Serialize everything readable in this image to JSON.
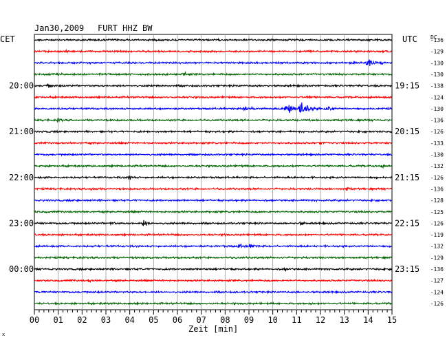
{
  "header": {
    "date": "Jan30,2009",
    "station": "FURT HHZ BW",
    "left_tz": "CET",
    "right_tz": "UTC",
    "dc_label": "DC"
  },
  "footer": {
    "xlabel": "Zeit [min]",
    "corner_mark": "x"
  },
  "chart_data": {
    "type": "line",
    "title": "Jan30,2009   FURT HHZ BW",
    "xlabel": "Zeit [min]",
    "xlim": [
      0,
      15
    ],
    "x_ticks": [
      "00",
      "01",
      "02",
      "03",
      "04",
      "05",
      "06",
      "07",
      "08",
      "09",
      "10",
      "11",
      "12",
      "13",
      "14",
      "15"
    ],
    "grid": true,
    "trace_colors": [
      "#000000",
      "#ff0000",
      "#0000ff",
      "#006400"
    ],
    "left_time_labels": [
      {
        "row": 4,
        "label": "20:00"
      },
      {
        "row": 8,
        "label": "21:00"
      },
      {
        "row": 12,
        "label": "22:00"
      },
      {
        "row": 16,
        "label": "23:00"
      },
      {
        "row": 20,
        "label": "00:00"
      }
    ],
    "right_time_labels": [
      {
        "row": 4,
        "label": "19:15"
      },
      {
        "row": 8,
        "label": "20:15"
      },
      {
        "row": 12,
        "label": "21:15"
      },
      {
        "row": 16,
        "label": "22:15"
      },
      {
        "row": 20,
        "label": "23:15"
      }
    ],
    "dc_offsets": [
      -136,
      -129,
      -130,
      -130,
      -138,
      -124,
      -130,
      -136,
      -126,
      -133,
      -130,
      -132,
      -126,
      -136,
      -128,
      -125,
      -126,
      -119,
      -132,
      -129,
      -136,
      -127,
      -124,
      -126
    ],
    "traces": [
      {
        "events": []
      },
      {
        "events": [
          {
            "t": 1.3,
            "amp": 0.35,
            "dur": 0.5
          },
          {
            "t": 6.5,
            "amp": 0.25,
            "dur": 0.4
          }
        ]
      },
      {
        "events": [
          {
            "t": 13.3,
            "amp": 0.4,
            "dur": 0.5
          },
          {
            "t": 14.0,
            "amp": 1.0,
            "dur": 0.5
          },
          {
            "t": 14.6,
            "amp": 0.4,
            "dur": 0.4
          }
        ]
      },
      {
        "events": [
          {
            "t": 1.0,
            "amp": 0.3,
            "dur": 0.5
          },
          {
            "t": 6.3,
            "amp": 0.5,
            "dur": 0.4
          }
        ]
      },
      {
        "events": [
          {
            "t": 0.6,
            "amp": 0.5,
            "dur": 0.3
          }
        ]
      },
      {
        "events": [
          {
            "t": 11.5,
            "amp": 0.35,
            "dur": 0.5
          }
        ]
      },
      {
        "events": [
          {
            "t": 8.8,
            "amp": 0.5,
            "dur": 1.2
          },
          {
            "t": 10.6,
            "amp": 1.3,
            "dur": 0.7
          },
          {
            "t": 11.2,
            "amp": 1.5,
            "dur": 0.8
          },
          {
            "t": 12.3,
            "amp": 0.6,
            "dur": 0.8
          }
        ]
      },
      {
        "events": [
          {
            "t": 1.0,
            "amp": 0.4,
            "dur": 0.5
          },
          {
            "t": 11.5,
            "amp": 0.25,
            "dur": 0.6
          }
        ]
      },
      {
        "events": []
      },
      {
        "events": [
          {
            "t": 12.0,
            "amp": 0.5,
            "dur": 0.4
          }
        ]
      },
      {
        "events": []
      },
      {
        "events": [
          {
            "t": 14.6,
            "amp": 0.4,
            "dur": 0.3
          }
        ]
      },
      {
        "events": [
          {
            "t": 4.0,
            "amp": 0.6,
            "dur": 0.4
          },
          {
            "t": 14.3,
            "amp": 0.25,
            "dur": 0.3
          }
        ]
      },
      {
        "events": [
          {
            "t": 2.4,
            "amp": 0.35,
            "dur": 0.7
          },
          {
            "t": 13.1,
            "amp": 0.35,
            "dur": 0.7
          }
        ]
      },
      {
        "events": []
      },
      {
        "events": [
          {
            "t": 7.4,
            "amp": 0.2,
            "dur": 0.3
          }
        ]
      },
      {
        "events": [
          {
            "t": 3.2,
            "amp": 0.35,
            "dur": 0.6
          },
          {
            "t": 4.6,
            "amp": 0.8,
            "dur": 0.5
          },
          {
            "t": 11.2,
            "amp": 0.45,
            "dur": 0.5
          },
          {
            "t": 14.5,
            "amp": 0.2,
            "dur": 0.3
          }
        ]
      },
      {
        "events": [
          {
            "t": 8.0,
            "amp": 0.25,
            "dur": 0.4
          }
        ]
      },
      {
        "events": [
          {
            "t": 8.6,
            "amp": 0.45,
            "dur": 0.7
          },
          {
            "t": 9.1,
            "amp": 0.55,
            "dur": 0.4
          }
        ]
      },
      {
        "events": []
      },
      {
        "events": [
          {
            "t": 7.2,
            "amp": 0.25,
            "dur": 0.3
          },
          {
            "t": 10.5,
            "amp": 0.35,
            "dur": 0.5
          }
        ]
      },
      {
        "events": [
          {
            "t": 2.3,
            "amp": 0.4,
            "dur": 0.4
          }
        ]
      },
      {
        "events": [
          {
            "t": 11.0,
            "amp": 0.2,
            "dur": 0.4
          }
        ]
      },
      {
        "events": [
          {
            "t": 11.6,
            "amp": 0.25,
            "dur": 0.5
          }
        ]
      }
    ]
  }
}
